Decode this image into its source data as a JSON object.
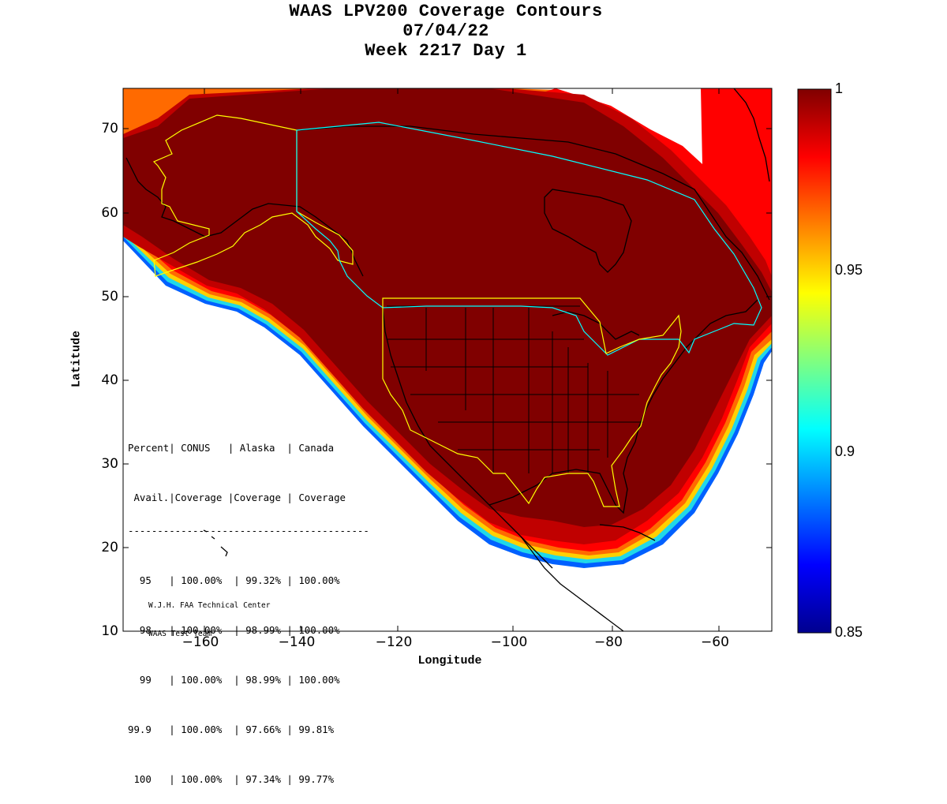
{
  "title": {
    "line1": "WAAS LPV200 Coverage Contours",
    "line2": "07/04/22",
    "line3": "Week 2217 Day 1"
  },
  "axes": {
    "xlabel": "Longitude",
    "ylabel": "Latitude",
    "x_ticks": [
      "−160",
      "−140",
      "−120",
      "−100",
      "−80",
      "−60"
    ],
    "y_ticks": [
      "70",
      "60",
      "50",
      "40",
      "30",
      "20",
      "10"
    ]
  },
  "colorbar": {
    "ticks": [
      "1",
      "0.95",
      "0.9",
      "0.85"
    ],
    "range": [
      0.85,
      1.0
    ],
    "colormap": "jet"
  },
  "stats_table": {
    "header1": "Percent| CONUS   | Alaska  | Canada",
    "header2": " Avail.|Coverage |Coverage | Coverage",
    "rule": "-----------------------------------------",
    "rows": [
      "  95   | 100.00%  | 99.32% | 100.00%",
      "  98   | 100.00%  | 98.99% | 100.00%",
      "  99   | 100.00%  | 98.99% | 100.00%",
      "99.9   | 100.00%  | 97.66% | 99.81%",
      " 100   | 100.00%  | 97.34% | 99.77%"
    ]
  },
  "credit": {
    "line1": "W.J.H. FAA Technical Center",
    "line2": "WAAS Test Team"
  },
  "colors": {
    "full_coverage": "#800000",
    "boundary_yellow": "#ffff00",
    "boundary_cyan": "#00ffff"
  }
}
